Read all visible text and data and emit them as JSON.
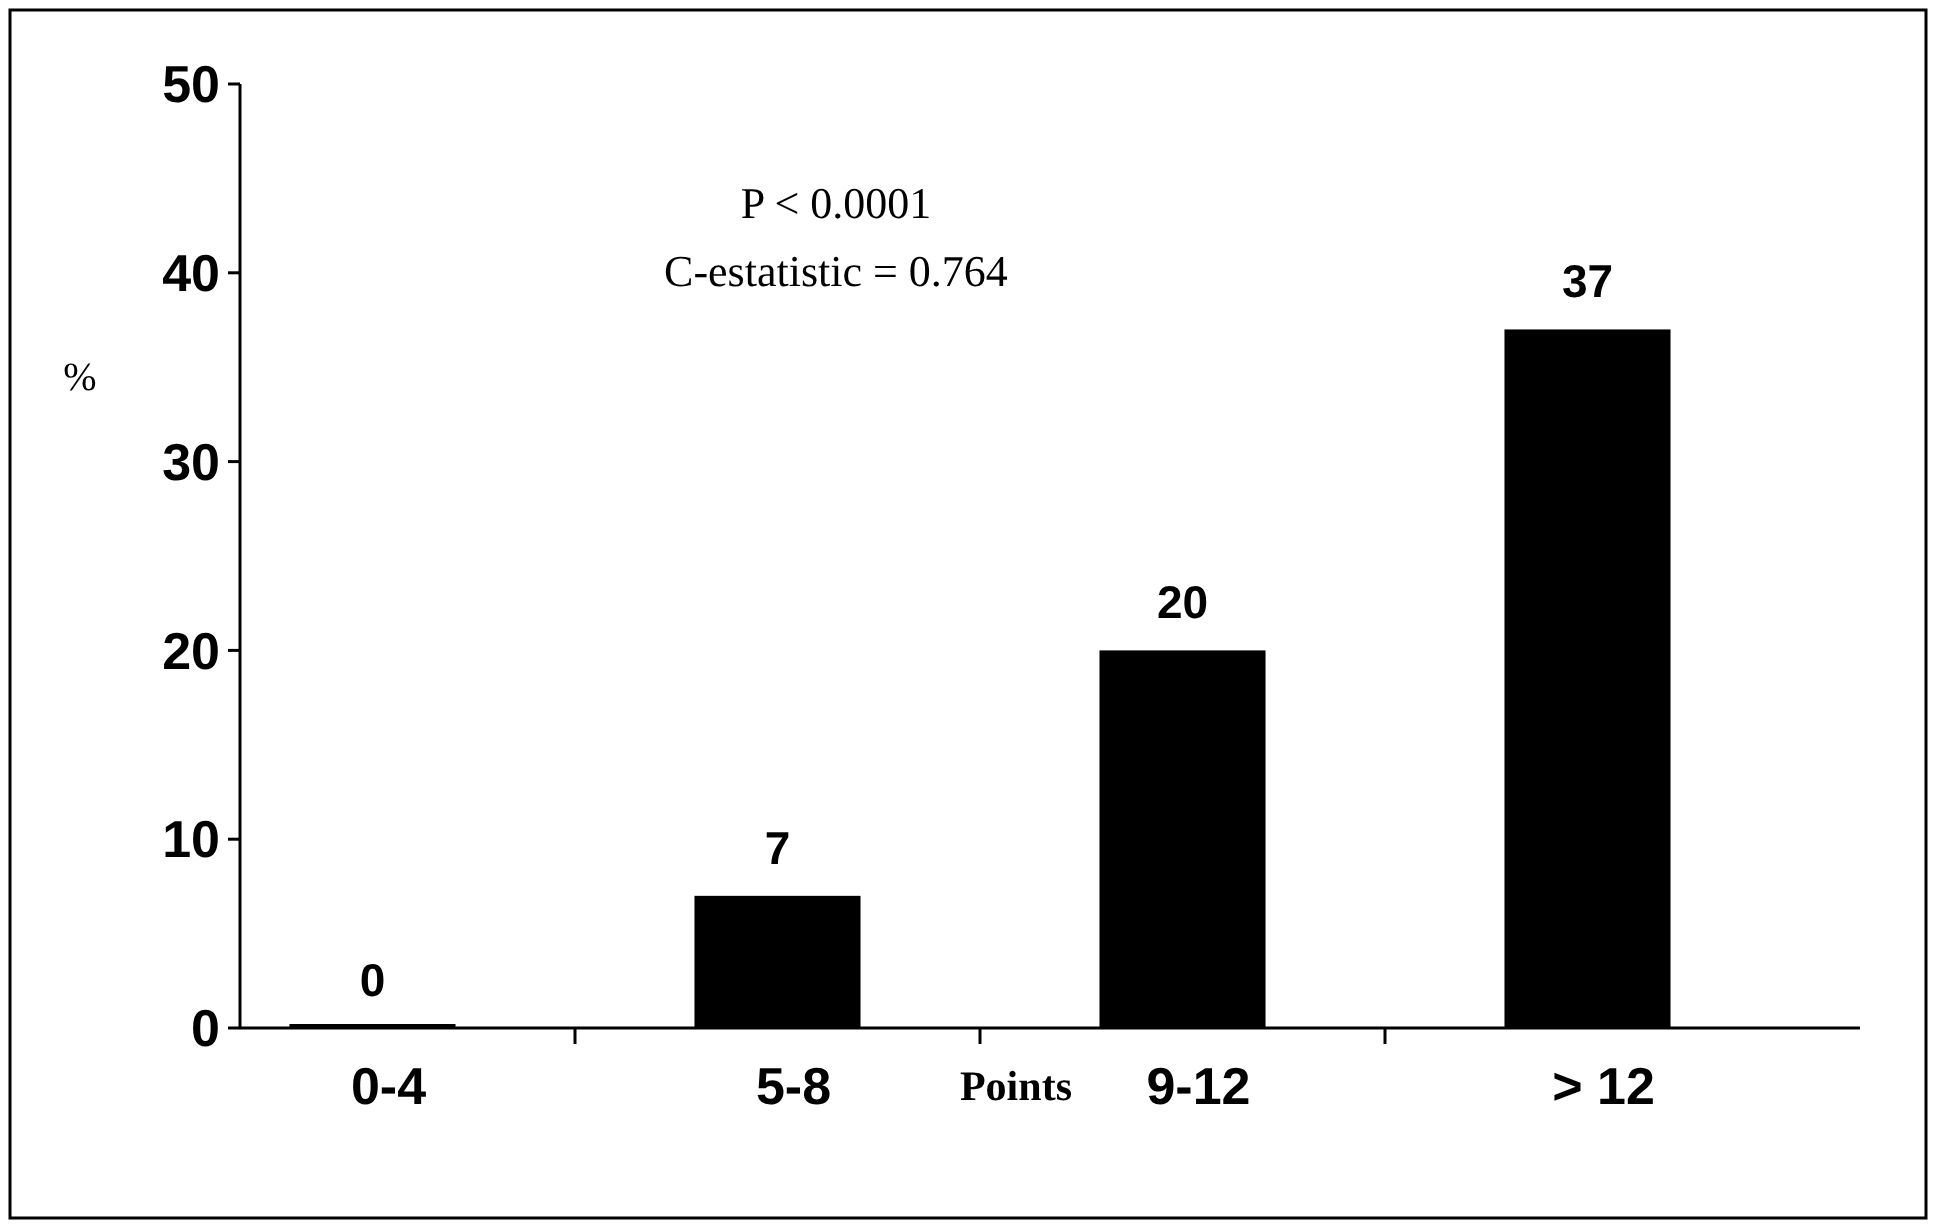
{
  "chart_data": {
    "type": "bar",
    "categories": [
      "0-4",
      "5-8",
      "9-12",
      "> 12"
    ],
    "values": [
      0,
      7,
      20,
      37
    ],
    "color": "#000000",
    "xlabel": "Points",
    "ylabel": "%",
    "ylim": [
      0,
      50
    ],
    "yticks": [
      0,
      10,
      20,
      30,
      40,
      50
    ],
    "data_labels": true,
    "grid": false,
    "annotations": [
      "P < 0.0001",
      "C-estatistic = 0.764"
    ]
  }
}
